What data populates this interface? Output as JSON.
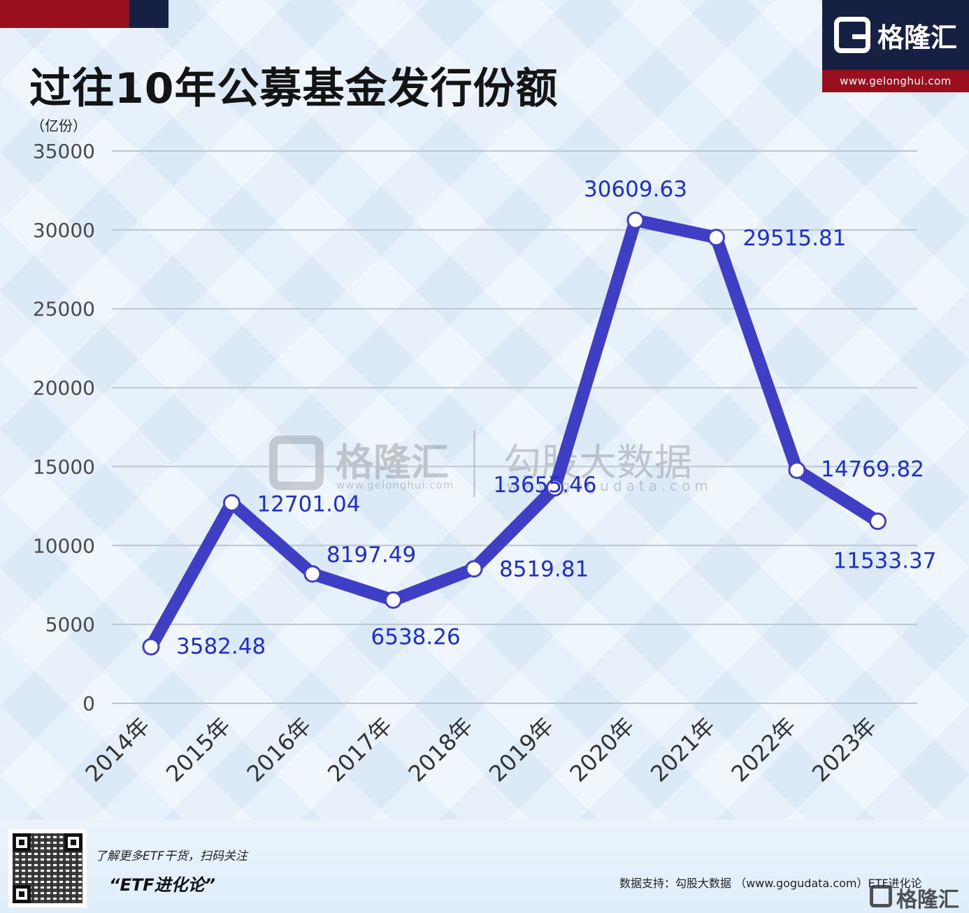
{
  "title": "过往10年公募基金发行份额",
  "unit": "（亿份）",
  "brand": {
    "name": "格隆汇",
    "url": "www.gelonghui.com"
  },
  "watermark": {
    "brand_name": "格隆汇",
    "brand_url": "www.gelonghui.com",
    "data_name": "勾股大数据",
    "data_url": "www.gogudata.com"
  },
  "footer": {
    "note": "了解更多ETF干货，扫码关注",
    "account": "“ETF进化论”",
    "source": "数据支持：勾股大数据 （www.gogudata.com）ETF进化论",
    "logo_name": "格隆汇"
  },
  "colors": {
    "line": "#3f3fc6",
    "label": "#1f2fc4",
    "accent_red": "#9a0f1e",
    "accent_navy": "#152042",
    "grid": "#bcc6d0"
  },
  "chart_data": {
    "type": "line",
    "categories": [
      "2014年",
      "2015年",
      "2016年",
      "2017年",
      "2018年",
      "2019年",
      "2020年",
      "2021年",
      "2022年",
      "2023年"
    ],
    "series": [
      {
        "values": [
          3582.48,
          12701.04,
          8197.49,
          6538.26,
          8519.81,
          13655.46,
          30609.63,
          29515.81,
          14769.82,
          11533.37
        ]
      }
    ],
    "data_labels": [
      "3582.48",
      "12701.04",
      "8197.49",
      "6538.26",
      "8519.81",
      "13655.46",
      "30609.63",
      "29515.81",
      "14769.82",
      "11533.37"
    ],
    "ylim": [
      0,
      35000
    ],
    "yticks": [
      0,
      5000,
      10000,
      15000,
      20000,
      25000,
      30000,
      35000
    ],
    "grid": true,
    "legend": "none"
  }
}
